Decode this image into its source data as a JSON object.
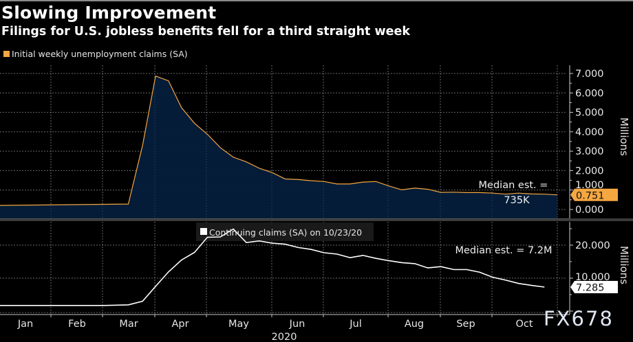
{
  "header": {
    "title": "Slowing Improvement",
    "subtitle": "Filings for U.S. jobless benefits fell for a third straight week"
  },
  "watermark": "FX678",
  "chart_data": [
    {
      "type": "area",
      "title": "Initial weekly unemployment claims (SA)",
      "legend": "Initial weekly unemployment claims (SA)",
      "legend_placement": "top-left",
      "ylabel": "Millions",
      "ylim": [
        0,
        7
      ],
      "yticks": [
        "0.000",
        "1.000",
        "2.000",
        "3.000",
        "4.000",
        "5.000",
        "6.000",
        "7.000"
      ],
      "ytick_values": [
        0,
        1,
        2,
        3,
        4,
        5,
        6,
        7
      ],
      "grid": true,
      "color": "#f5a742",
      "fill": "#041e3a",
      "last_value_label": "0.751",
      "annotation": [
        "Median est. =",
        "735K"
      ],
      "x": [
        0,
        9.9,
        11,
        12,
        13,
        14,
        15,
        16,
        17,
        18,
        19,
        20,
        21,
        22,
        23,
        24,
        25,
        26,
        27,
        28,
        29,
        30,
        31,
        32,
        33,
        34,
        35,
        36,
        37,
        38,
        39,
        40,
        41,
        42,
        43
      ],
      "values": [
        0.21,
        0.28,
        3.3,
        6.87,
        6.62,
        5.24,
        4.44,
        3.87,
        3.18,
        2.69,
        2.45,
        2.12,
        1.9,
        1.57,
        1.54,
        1.48,
        1.44,
        1.31,
        1.31,
        1.41,
        1.44,
        1.21,
        1.01,
        1.1,
        1.04,
        0.88,
        0.89,
        0.87,
        0.87,
        0.84,
        0.79,
        0.84,
        0.8,
        0.79,
        0.751
      ]
    },
    {
      "type": "line",
      "title": "Continuing claims (SA) on 10/23/20",
      "legend": "Continuing claims (SA) on 10/23/20",
      "legend_placement": "top-center",
      "ylabel": "Millions",
      "ylim": [
        0,
        25
      ],
      "yticks": [
        "10.000",
        "20.000"
      ],
      "ytick_values": [
        10,
        20
      ],
      "grid": true,
      "color": "#ffffff",
      "last_value_label": "7.285",
      "annotation": [
        "Median est. = 7.2M"
      ],
      "x": [
        0,
        2,
        4,
        6,
        8,
        9.9,
        11,
        12,
        13,
        14,
        15,
        16,
        17,
        18,
        19,
        20,
        21,
        22,
        23,
        24,
        25,
        26,
        27,
        28,
        29,
        30,
        31,
        32,
        33,
        34,
        35,
        36,
        37,
        38,
        39,
        40,
        41,
        42
      ],
      "values": [
        1.7,
        1.7,
        1.7,
        1.7,
        1.7,
        1.9,
        3.0,
        7.5,
        11.9,
        15.5,
        17.8,
        22.4,
        22.5,
        24.9,
        20.8,
        21.3,
        20.6,
        20.3,
        19.3,
        18.7,
        17.7,
        17.3,
        16.2,
        16.9,
        16.0,
        15.3,
        14.7,
        14.4,
        13.1,
        13.5,
        12.6,
        12.6,
        11.8,
        10.3,
        9.4,
        8.4,
        7.8,
        7.285
      ]
    }
  ],
  "x_axis": {
    "months": [
      "Jan",
      "Feb",
      "Mar",
      "Apr",
      "May",
      "Jun",
      "Jul",
      "Aug",
      "Sep",
      "Oct"
    ],
    "year": "2020"
  }
}
